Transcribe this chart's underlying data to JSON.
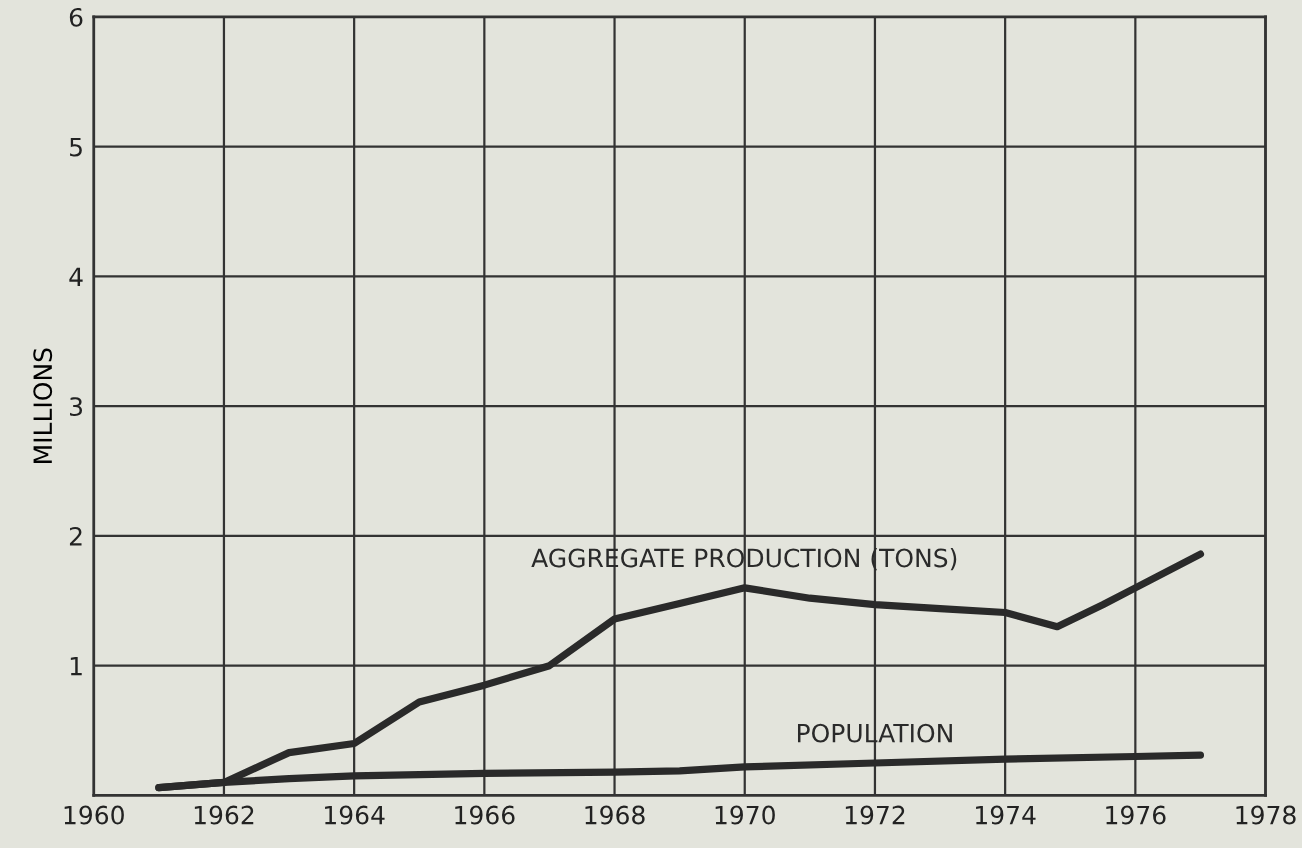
{
  "chart_data": {
    "type": "line",
    "ylabel": "MILLIONS",
    "xlim": [
      1960,
      1978
    ],
    "xticks": [
      1960,
      1962,
      1964,
      1966,
      1968,
      1970,
      1972,
      1974,
      1976,
      1978
    ],
    "ylim": [
      0,
      6
    ],
    "yticks": [
      {
        "value": 0,
        "label": null
      },
      1,
      2,
      3,
      4,
      5,
      6
    ],
    "grid": true,
    "legend": false,
    "marker": "none",
    "line_style": "solid",
    "series": [
      {
        "name": "AGGREGATE PRODUCTION (TONS)",
        "color": "#2a2a2a",
        "x": [
          1961,
          1962,
          1963,
          1964,
          1965,
          1966,
          1967,
          1968,
          1969,
          1970,
          1971,
          1972,
          1973,
          1974,
          1974.8,
          1975.5,
          1976,
          1977
        ],
        "values": [
          0.06,
          0.1,
          0.33,
          0.4,
          0.72,
          0.85,
          1.0,
          1.36,
          1.48,
          1.6,
          1.52,
          1.47,
          1.44,
          1.41,
          1.3,
          1.47,
          1.6,
          1.86
        ]
      },
      {
        "name": "POPULATION",
        "color": "#2a2a2a",
        "x": [
          1961,
          1962,
          1963,
          1964,
          1966,
          1968,
          1969,
          1970,
          1972,
          1974,
          1976,
          1977
        ],
        "values": [
          0.06,
          0.1,
          0.13,
          0.15,
          0.17,
          0.18,
          0.19,
          0.22,
          0.25,
          0.28,
          0.3,
          0.31
        ]
      }
    ]
  }
}
